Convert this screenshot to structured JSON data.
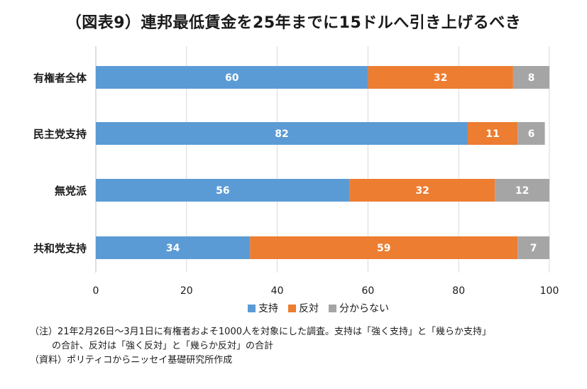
{
  "title": "（図表9）連邦最低賃金を25年までに15ドルへ引き上げるべき",
  "chart_data": {
    "type": "bar",
    "orientation": "horizontal",
    "stacked": true,
    "categories": [
      "有権者全体",
      "民主党支持",
      "無党派",
      "共和党支持"
    ],
    "series": [
      {
        "name": "支持",
        "values": [
          60,
          82,
          56,
          34
        ],
        "color": "#5B9BD5"
      },
      {
        "name": "反対",
        "values": [
          32,
          11,
          32,
          59
        ],
        "color": "#ED7D31"
      },
      {
        "name": "分からない",
        "values": [
          8,
          6,
          12,
          7
        ],
        "color": "#A5A5A5"
      }
    ],
    "xlim": [
      0,
      100
    ],
    "xticks": [
      0,
      20,
      40,
      60,
      80,
      100
    ],
    "grid": "vertical",
    "legend_position": "bottom"
  },
  "notes": {
    "line1": "（注）21年2月26日～3月1日に有権者およそ1000人を対象にした調査。支持は「強く支持」と「幾らか支持」",
    "line2": "の合計、反対は「強く反対」と「幾らか反対」の合計",
    "line3": "（資料）ポリティコからニッセイ基礎研究所作成"
  }
}
